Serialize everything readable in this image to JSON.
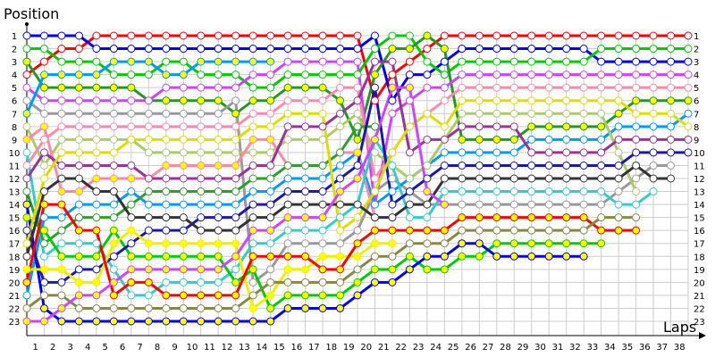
{
  "chart_data": {
    "type": "line",
    "title": "",
    "ylabel": "Position",
    "xlabel": "Laps",
    "x_ticks": [
      "1",
      "2",
      "3",
      "4",
      "5",
      "6",
      "7",
      "8",
      "9",
      "10",
      "11",
      "12",
      "13",
      "14",
      "15",
      "16",
      "17",
      "18",
      "19",
      "20",
      "21",
      "22",
      "23",
      "24",
      "25",
      "26",
      "27",
      "28",
      "29",
      "30",
      "31",
      "32",
      "33",
      "34",
      "35",
      "36",
      "37",
      "38"
    ],
    "y_ticks": [
      "1",
      "2",
      "3",
      "4",
      "5",
      "6",
      "7",
      "8",
      "9",
      "10",
      "11",
      "12",
      "13",
      "14",
      "15",
      "16",
      "17",
      "18",
      "19",
      "20",
      "21",
      "22",
      "23"
    ],
    "xlim": [
      0,
      38
    ],
    "ylim": [
      1,
      23
    ],
    "y_inverted": true,
    "grid": true,
    "series": [
      {
        "color": "#ff0000",
        "fill": "#ffffff",
        "values": [
          4,
          3,
          2,
          2,
          1,
          1,
          1,
          1,
          1,
          1,
          1,
          1,
          1,
          1,
          1,
          1,
          1,
          1,
          1,
          1,
          6,
          4,
          3,
          2,
          1,
          1,
          1,
          1,
          1,
          1,
          1,
          1,
          1,
          1,
          1,
          1,
          1,
          1,
          1
        ]
      },
      {
        "color": "#0000ff",
        "fill": "#ffffff",
        "values": [
          1,
          1,
          1,
          1,
          2,
          2,
          2,
          2,
          2,
          2,
          2,
          2,
          2,
          2,
          2,
          2,
          2,
          2,
          2,
          2,
          1,
          6,
          4,
          4,
          3,
          2,
          2,
          2,
          2,
          2,
          2,
          2,
          2,
          3,
          3,
          3,
          3,
          3,
          3
        ]
      },
      {
        "color": "#00cc00",
        "fill": "#ffffff",
        "values": [
          2,
          2,
          3,
          3,
          3,
          4,
          4,
          4,
          3,
          3,
          4,
          4,
          4,
          5,
          5,
          4,
          4,
          4,
          4,
          4,
          2,
          1,
          1,
          3,
          4,
          3,
          3,
          3,
          3,
          3,
          3,
          3,
          3,
          2,
          2,
          2,
          2,
          2,
          2
        ]
      },
      {
        "color": "#229922",
        "fill": "#ffff00",
        "values": [
          3,
          5,
          5,
          5,
          5,
          5,
          5,
          6,
          6,
          6,
          6,
          6,
          7,
          6,
          6,
          5,
          5,
          5,
          6,
          9,
          4,
          2,
          2,
          1,
          2,
          9,
          9,
          9,
          9,
          8,
          8,
          8,
          8,
          8,
          7,
          6,
          6,
          6,
          6
        ]
      },
      {
        "color": "#cc44ff",
        "fill": "#ffffff",
        "values": [
          5,
          6,
          6,
          6,
          6,
          6,
          6,
          6,
          5,
          5,
          5,
          5,
          5,
          4,
          4,
          3,
          3,
          3,
          3,
          3,
          14,
          7,
          6,
          5,
          5,
          4,
          4,
          4,
          4,
          4,
          4,
          4,
          4,
          4,
          4,
          4,
          4,
          4,
          4
        ]
      },
      {
        "color": "#999999",
        "fill": "#ffffff",
        "values": [
          6,
          7,
          7,
          7,
          7,
          7,
          7,
          7,
          7,
          7,
          7,
          7,
          6,
          20,
          19,
          17,
          17,
          17,
          17,
          16,
          13,
          12,
          13,
          14,
          14,
          14,
          14,
          14,
          14,
          14,
          14,
          14,
          14,
          14,
          13,
          12,
          11,
          11,
          null
        ]
      },
      {
        "color": "#0099ff",
        "fill": "#ffff00",
        "values": [
          7,
          4,
          4,
          4,
          4,
          3,
          3,
          3,
          4,
          4,
          3,
          3,
          3,
          3,
          3
        ]
      },
      {
        "color": "#0099ff",
        "fill": "#ffffff",
        "values": [
          21,
          15,
          15,
          14,
          14,
          14,
          13,
          14,
          14,
          14,
          14,
          14,
          14,
          13,
          13,
          12,
          12,
          12,
          11,
          10,
          14,
          13,
          12,
          11,
          10,
          10,
          10,
          10,
          10,
          9,
          9,
          9,
          9,
          9,
          8,
          8,
          8,
          8,
          7
        ]
      },
      {
        "color": "#aacc66",
        "fill": "#ffffff",
        "values": [
          8,
          11,
          9,
          9,
          9,
          9,
          9,
          10,
          10,
          10,
          10,
          10,
          10,
          10,
          10,
          9,
          9,
          9,
          8,
          7,
          10,
          11,
          12,
          11,
          9,
          7,
          7,
          7,
          7,
          7,
          7,
          7,
          7,
          7,
          10,
          13
        ]
      },
      {
        "color": "#ff88aa",
        "fill": "#ffffff",
        "values": [
          11,
          9,
          8,
          8,
          8,
          8,
          8,
          8,
          8,
          8,
          8,
          8,
          8,
          7,
          7,
          6,
          6,
          6,
          5,
          5,
          12,
          10,
          8,
          7,
          6,
          5,
          5,
          5,
          5,
          5,
          5,
          5,
          5,
          5,
          5,
          5,
          5,
          5,
          5
        ]
      },
      {
        "color": "#ff88aa",
        "fill": "#ffff00",
        "values": [
          9,
          8,
          13,
          13,
          12,
          12,
          12,
          12,
          11,
          11,
          11,
          11,
          11,
          9,
          9,
          11,
          11,
          11,
          10,
          10,
          15
        ]
      },
      {
        "color": "#33cccc",
        "fill": "#ffffff",
        "values": [
          10,
          18,
          17,
          17,
          17,
          19,
          21,
          21,
          20,
          20,
          20,
          20,
          19,
          17,
          17,
          16,
          16,
          16,
          15,
          14,
          9,
          11,
          15,
          15,
          13,
          13,
          13,
          13,
          13,
          13,
          13,
          13,
          13,
          13,
          14,
          14,
          13
        ]
      },
      {
        "color": "#993399",
        "fill": "#ffffff",
        "values": [
          12,
          10,
          11,
          11,
          11,
          11,
          11,
          12,
          12,
          12,
          12,
          12,
          12,
          11,
          11,
          8,
          8,
          8,
          7,
          6,
          3,
          3,
          10,
          9,
          9,
          8,
          8,
          8,
          8,
          10,
          10,
          10,
          10,
          10,
          9,
          9,
          9,
          9,
          9
        ]
      },
      {
        "color": "#2e9e2e",
        "fill": "#ffffff",
        "values": [
          13,
          17,
          16,
          15,
          15,
          15,
          14,
          13,
          13,
          13,
          13,
          13,
          13,
          12,
          12,
          11,
          11,
          11,
          10,
          8,
          8
        ]
      },
      {
        "color": "#00cc00",
        "fill": "#ffff00",
        "values": [
          15,
          16,
          18,
          18,
          18,
          16,
          18,
          18,
          18,
          18,
          18,
          18,
          20,
          19,
          22,
          21,
          21,
          21,
          21,
          20,
          19,
          19,
          18,
          19,
          19,
          18,
          18,
          17,
          17,
          17,
          17,
          17,
          17,
          17
        ]
      },
      {
        "color": "#0000ff",
        "fill": "#ffff00",
        "values": [
          14,
          22,
          23,
          23,
          23,
          23,
          23,
          23,
          23,
          23,
          23,
          23,
          23,
          23,
          23,
          22,
          22,
          22,
          22,
          21,
          20,
          20,
          19,
          18,
          18,
          17,
          17,
          18,
          18,
          18,
          18,
          18,
          18
        ]
      },
      {
        "color": "#1a1aaa",
        "fill": "#ffffff",
        "values": [
          16,
          20,
          20,
          19,
          19,
          18,
          17,
          16,
          16,
          16,
          15,
          15,
          15,
          14,
          14,
          13,
          13,
          13,
          12,
          11,
          5,
          14,
          13,
          12,
          11,
          11,
          11,
          11,
          11,
          11,
          11,
          11,
          11,
          11,
          11,
          10,
          10,
          10,
          10
        ]
      },
      {
        "color": "#dddd00",
        "fill": "#ffffff",
        "values": [
          17,
          12,
          10,
          10,
          10,
          10,
          9,
          9,
          9,
          9,
          9,
          9,
          9,
          8,
          8,
          7,
          7,
          7,
          16,
          15,
          13,
          10,
          8,
          7,
          8,
          6,
          6,
          6,
          6,
          6,
          6,
          6,
          6,
          6,
          6,
          7,
          7,
          7,
          8
        ]
      },
      {
        "color": "#333333",
        "fill": "#ffffff",
        "values": [
          18,
          13,
          12,
          12,
          13,
          13,
          15,
          15,
          15,
          15,
          16,
          16,
          16,
          15,
          15,
          14,
          14,
          14,
          14,
          14,
          15,
          15,
          14,
          14,
          12,
          12,
          12,
          12,
          12,
          12,
          12,
          12,
          12,
          12,
          12,
          11,
          12,
          12
        ]
      },
      {
        "color": "#eeee00",
        "fill": "#ffff00",
        "values": [
          19,
          19,
          19,
          20,
          20,
          17,
          16,
          17,
          17,
          17,
          17,
          17,
          17,
          22,
          21,
          19,
          19,
          18,
          18,
          18,
          17,
          17
        ]
      },
      {
        "color": "#ff0000",
        "fill": "#ffff00",
        "values": [
          20,
          14,
          14,
          16,
          16,
          21,
          20,
          20,
          21,
          21,
          21,
          21,
          21,
          18,
          18,
          18,
          18,
          19,
          19,
          17,
          16,
          16,
          16,
          16,
          16,
          15,
          15,
          15,
          15,
          15,
          15,
          15,
          15,
          16,
          16,
          16
        ]
      },
      {
        "color": "#888844",
        "fill": "#ffffff",
        "values": [
          22,
          21,
          21,
          22,
          22,
          22,
          22,
          22,
          22,
          22,
          22,
          22,
          22,
          21,
          20,
          20,
          20,
          20,
          20,
          19,
          18,
          18,
          17,
          17,
          17,
          16,
          16,
          16,
          16,
          16,
          16,
          16,
          16,
          15,
          15,
          15
        ]
      },
      {
        "color": "#cc44ff",
        "fill": "#ffff00",
        "values": [
          23,
          23,
          22,
          21,
          21,
          20,
          19,
          19,
          19,
          19,
          19,
          19,
          18,
          16,
          16,
          15,
          15,
          15,
          13,
          12,
          9,
          5,
          5,
          13,
          14
        ]
      }
    ]
  }
}
